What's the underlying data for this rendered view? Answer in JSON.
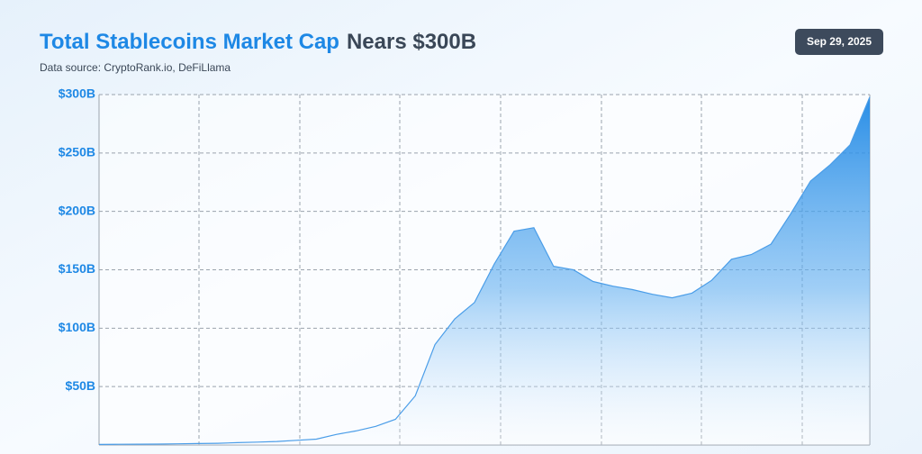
{
  "chart_data": {
    "type": "area",
    "title": "Total Stablecoins Market Cap",
    "title_suffix": "Nears $300B",
    "subtitle": "Data source: CryptoRank.io, DeFiLlama",
    "date_badge": "Sep 29, 2025",
    "color": "#1e88e5",
    "values": [
      0.5,
      0.6,
      0.7,
      0.8,
      1,
      1.2,
      1.5,
      2,
      2.5,
      3,
      4,
      5,
      9,
      12,
      16,
      22,
      42,
      86,
      108,
      122,
      155,
      183,
      186,
      153,
      150,
      140,
      136,
      133,
      129,
      126,
      130,
      141,
      159,
      163,
      172,
      198,
      226,
      240,
      257,
      298
    ],
    "ylim": [
      0,
      300
    ],
    "yticks": [
      {
        "value": 50,
        "label": "$50B"
      },
      {
        "value": 100,
        "label": "$100B"
      },
      {
        "value": 150,
        "label": "$150B"
      },
      {
        "value": 200,
        "label": "$200B"
      },
      {
        "value": 250,
        "label": "$250B"
      },
      {
        "value": 300,
        "label": "$300B"
      }
    ],
    "grid": true
  }
}
